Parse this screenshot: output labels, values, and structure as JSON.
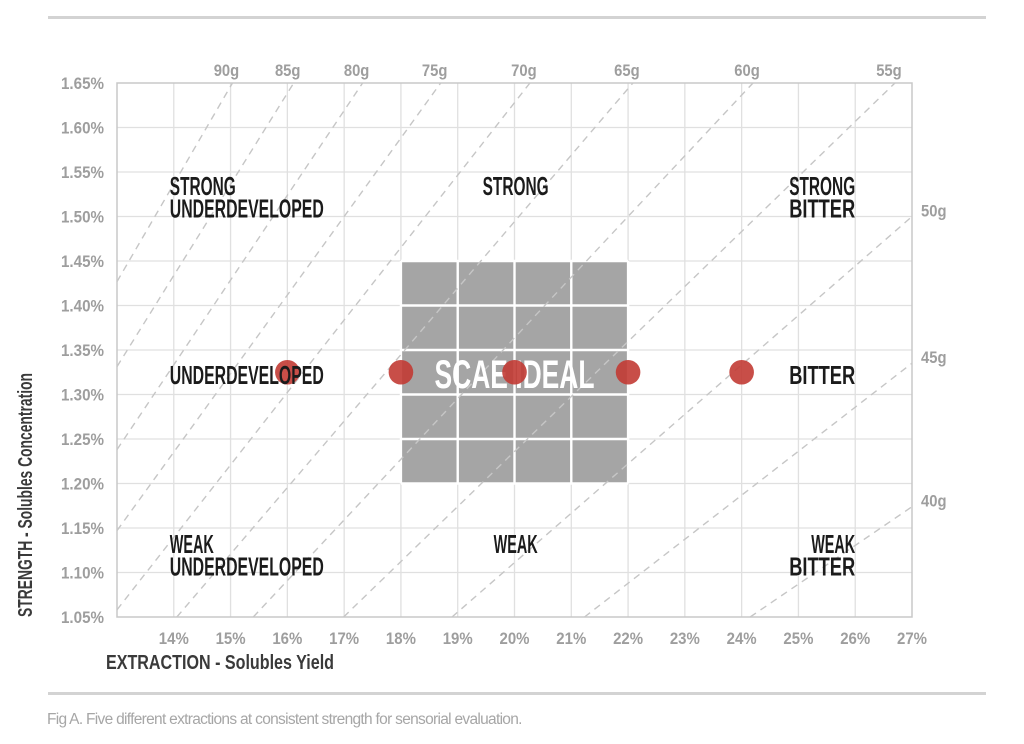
{
  "figure": {
    "caption": "Fig A. Five different extractions at consistent strength for sensorial evaluation."
  },
  "colors": {
    "background": "#ffffff",
    "grid": "#e0e0e0",
    "plot_border": "#c8c8c8",
    "ratio_line": "#c6c6c6",
    "ideal_box": "#a5a5a5",
    "ideal_box_grid": "#ffffff",
    "ideal_label_text": "#ffffff",
    "data_point": "#c23b34",
    "region_label": "#1b1b1b",
    "tick_label": "#9e9e9e",
    "ratio_label": "#9e9e9e",
    "axis_title": "#3a3a3a",
    "caption_text": "#a6a6a6",
    "divider": "#d3d3d3"
  },
  "chart_data": {
    "type": "scatter",
    "title": "",
    "xlabel": "EXTRACTION - Solubles Yield",
    "ylabel": "STRENGTH - Solubles Concentration",
    "xlim": [
      13,
      27
    ],
    "ylim": [
      1.05,
      1.65
    ],
    "grid": "on",
    "x_ticks": [
      {
        "value": 14,
        "label": "14%"
      },
      {
        "value": 15,
        "label": "15%"
      },
      {
        "value": 16,
        "label": "16%"
      },
      {
        "value": 17,
        "label": "17%"
      },
      {
        "value": 18,
        "label": "18%"
      },
      {
        "value": 19,
        "label": "19%"
      },
      {
        "value": 20,
        "label": "20%"
      },
      {
        "value": 21,
        "label": "21%"
      },
      {
        "value": 22,
        "label": "22%"
      },
      {
        "value": 23,
        "label": "23%"
      },
      {
        "value": 24,
        "label": "24%"
      },
      {
        "value": 25,
        "label": "25%"
      },
      {
        "value": 26,
        "label": "26%"
      },
      {
        "value": 27,
        "label": "27%"
      }
    ],
    "y_ticks": [
      {
        "value": 1.65,
        "label": "1.65%"
      },
      {
        "value": 1.6,
        "label": "1.60%"
      },
      {
        "value": 1.55,
        "label": "1.55%"
      },
      {
        "value": 1.5,
        "label": "1.50%"
      },
      {
        "value": 1.45,
        "label": "1.45%"
      },
      {
        "value": 1.4,
        "label": "1.40%"
      },
      {
        "value": 1.35,
        "label": "1.35%"
      },
      {
        "value": 1.3,
        "label": "1.30%"
      },
      {
        "value": 1.25,
        "label": "1.25%"
      },
      {
        "value": 1.2,
        "label": "1.20%"
      },
      {
        "value": 1.15,
        "label": "1.15%"
      },
      {
        "value": 1.1,
        "label": "1.10%"
      },
      {
        "value": 1.05,
        "label": "1.05%"
      }
    ],
    "points": {
      "name": "five-extractions-at-consistent-strength",
      "strength": 1.325,
      "extractions": [
        16,
        18,
        20,
        22,
        24
      ]
    },
    "ideal_zone": {
      "label": "SCAE IDEAL",
      "extraction_range": [
        18,
        22
      ],
      "strength_range": [
        1.2,
        1.45
      ]
    },
    "brew_ratio_lines": {
      "unit": "g per liter",
      "formula": "strength% = extraction% * dose / (1000 - 2 * dose)",
      "doses": [
        90,
        85,
        80,
        75,
        70,
        65,
        60,
        55,
        50,
        45,
        40
      ],
      "top_labels": [
        "90g",
        "85g",
        "80g",
        "75g",
        "70g",
        "65g",
        "60g",
        "55g"
      ],
      "right_labels": [
        "50g",
        "45g",
        "40g"
      ]
    },
    "regions": [
      {
        "label": "STRONG UNDERDEVELOPED",
        "align": "left",
        "x": 13.93,
        "lines": [
          {
            "text": "STRONG",
            "y": 1.534
          },
          {
            "text": "UNDERDEVELOPED",
            "y": 1.509
          }
        ]
      },
      {
        "label": "STRONG",
        "align": "center",
        "x": 20.02,
        "lines": [
          {
            "text": "STRONG",
            "y": 1.534
          }
        ]
      },
      {
        "label": "STRONG BITTER",
        "align": "right",
        "x": 26.0,
        "lines": [
          {
            "text": "STRONG",
            "y": 1.534
          },
          {
            "text": "BITTER",
            "y": 1.509
          }
        ]
      },
      {
        "label": "UNDERDEVELOPED",
        "align": "left",
        "x": 13.93,
        "lines": [
          {
            "text": "UNDERDEVELOPED",
            "y": 1.322
          }
        ]
      },
      {
        "label": "BITTER",
        "align": "right",
        "x": 26.0,
        "lines": [
          {
            "text": "BITTER",
            "y": 1.322
          }
        ]
      },
      {
        "label": "WEAK UNDERDEVELOPED",
        "align": "left",
        "x": 13.93,
        "lines": [
          {
            "text": "WEAK",
            "y": 1.132
          },
          {
            "text": "UNDERDEVELOPED",
            "y": 1.107
          }
        ]
      },
      {
        "label": "WEAK",
        "align": "center",
        "x": 20.02,
        "lines": [
          {
            "text": "WEAK",
            "y": 1.132
          }
        ]
      },
      {
        "label": "WEAK BITTER",
        "align": "right",
        "x": 26.0,
        "lines": [
          {
            "text": "WEAK",
            "y": 1.132
          },
          {
            "text": "BITTER",
            "y": 1.107
          }
        ]
      }
    ]
  }
}
